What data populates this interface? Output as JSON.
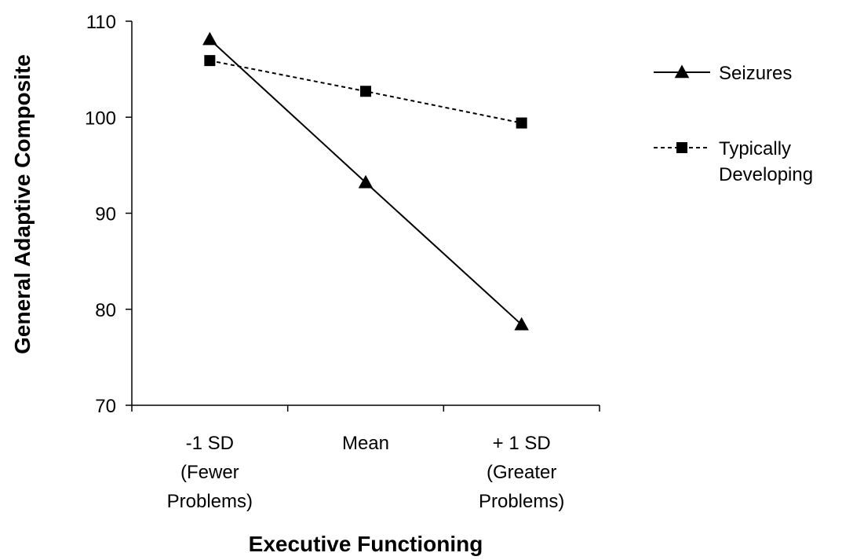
{
  "chart_data": {
    "type": "line",
    "xlabel": "Executive Functioning",
    "ylabel": "General Adaptive Composite",
    "ylim": [
      70,
      110
    ],
    "yticks": [
      70,
      80,
      90,
      100,
      110
    ],
    "categories": [
      [
        "-1 SD",
        "(Fewer",
        "Problems)"
      ],
      [
        "Mean"
      ],
      [
        "+ 1 SD",
        "(Greater",
        "Problems)"
      ]
    ],
    "legend_position": "right",
    "grid": false,
    "series": [
      {
        "name": "Seizures",
        "label_lines": [
          "Seizures"
        ],
        "values": [
          108.1,
          93.2,
          78.4
        ],
        "marker": "triangle",
        "line_style": "solid",
        "color": "#000000"
      },
      {
        "name": "Typically Developing",
        "label_lines": [
          "Typically",
          "Developing"
        ],
        "values": [
          105.9,
          102.7,
          99.4
        ],
        "marker": "square",
        "line_style": "dashed",
        "color": "#000000"
      }
    ]
  }
}
